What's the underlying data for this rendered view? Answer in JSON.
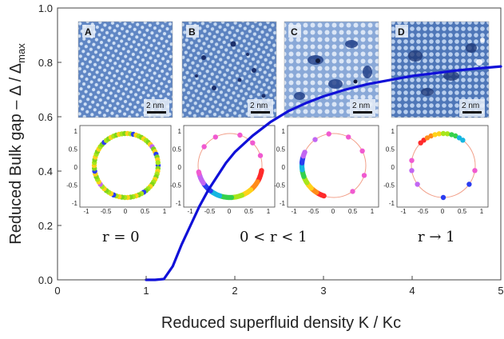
{
  "chart_data": {
    "type": "line",
    "xlabel": "Reduced superfluid density K / Kc",
    "ylabel_main": "Reduced Bulk gap – Δ / Δ",
    "ylabel_sub": "max",
    "xlim": [
      0,
      5
    ],
    "ylim": [
      0,
      1
    ],
    "x_ticks": [
      "0",
      "1",
      "2",
      "3",
      "4",
      "5"
    ],
    "y_ticks": [
      "0.0",
      "0.2",
      "0.4",
      "0.6",
      "0.8",
      "1.0"
    ],
    "grid": false,
    "series_color": "#1010d8",
    "series": [
      {
        "x": [
          1.0,
          1.1,
          1.2,
          1.3,
          1.4,
          1.5,
          1.6,
          1.7,
          1.8,
          1.9,
          2.0,
          2.2,
          2.4,
          2.6,
          2.8,
          3.0,
          3.25,
          3.5,
          3.75,
          4.0,
          4.25,
          4.5,
          4.75,
          5.0
        ],
        "y": [
          0.0,
          0.0,
          0.003,
          0.05,
          0.13,
          0.2,
          0.27,
          0.33,
          0.38,
          0.43,
          0.47,
          0.53,
          0.58,
          0.62,
          0.65,
          0.675,
          0.7,
          0.72,
          0.735,
          0.75,
          0.76,
          0.77,
          0.778,
          0.785
        ]
      }
    ],
    "insets": {
      "panels": [
        {
          "letter": "A",
          "scale_label": "2 nm"
        },
        {
          "letter": "B",
          "scale_label": "2 nm"
        },
        {
          "letter": "C",
          "scale_label": "2 nm"
        },
        {
          "letter": "D",
          "scale_label": "2 nm"
        }
      ],
      "circle_ticks": [
        "-1",
        "-0.5",
        "0",
        "0.5",
        "1"
      ],
      "circle_yticks": [
        "1",
        "0.5",
        "0",
        "-0.5",
        "-1"
      ],
      "regime_labels": [
        "r = 0",
        "0 < r < 1",
        "r → 1"
      ]
    }
  }
}
